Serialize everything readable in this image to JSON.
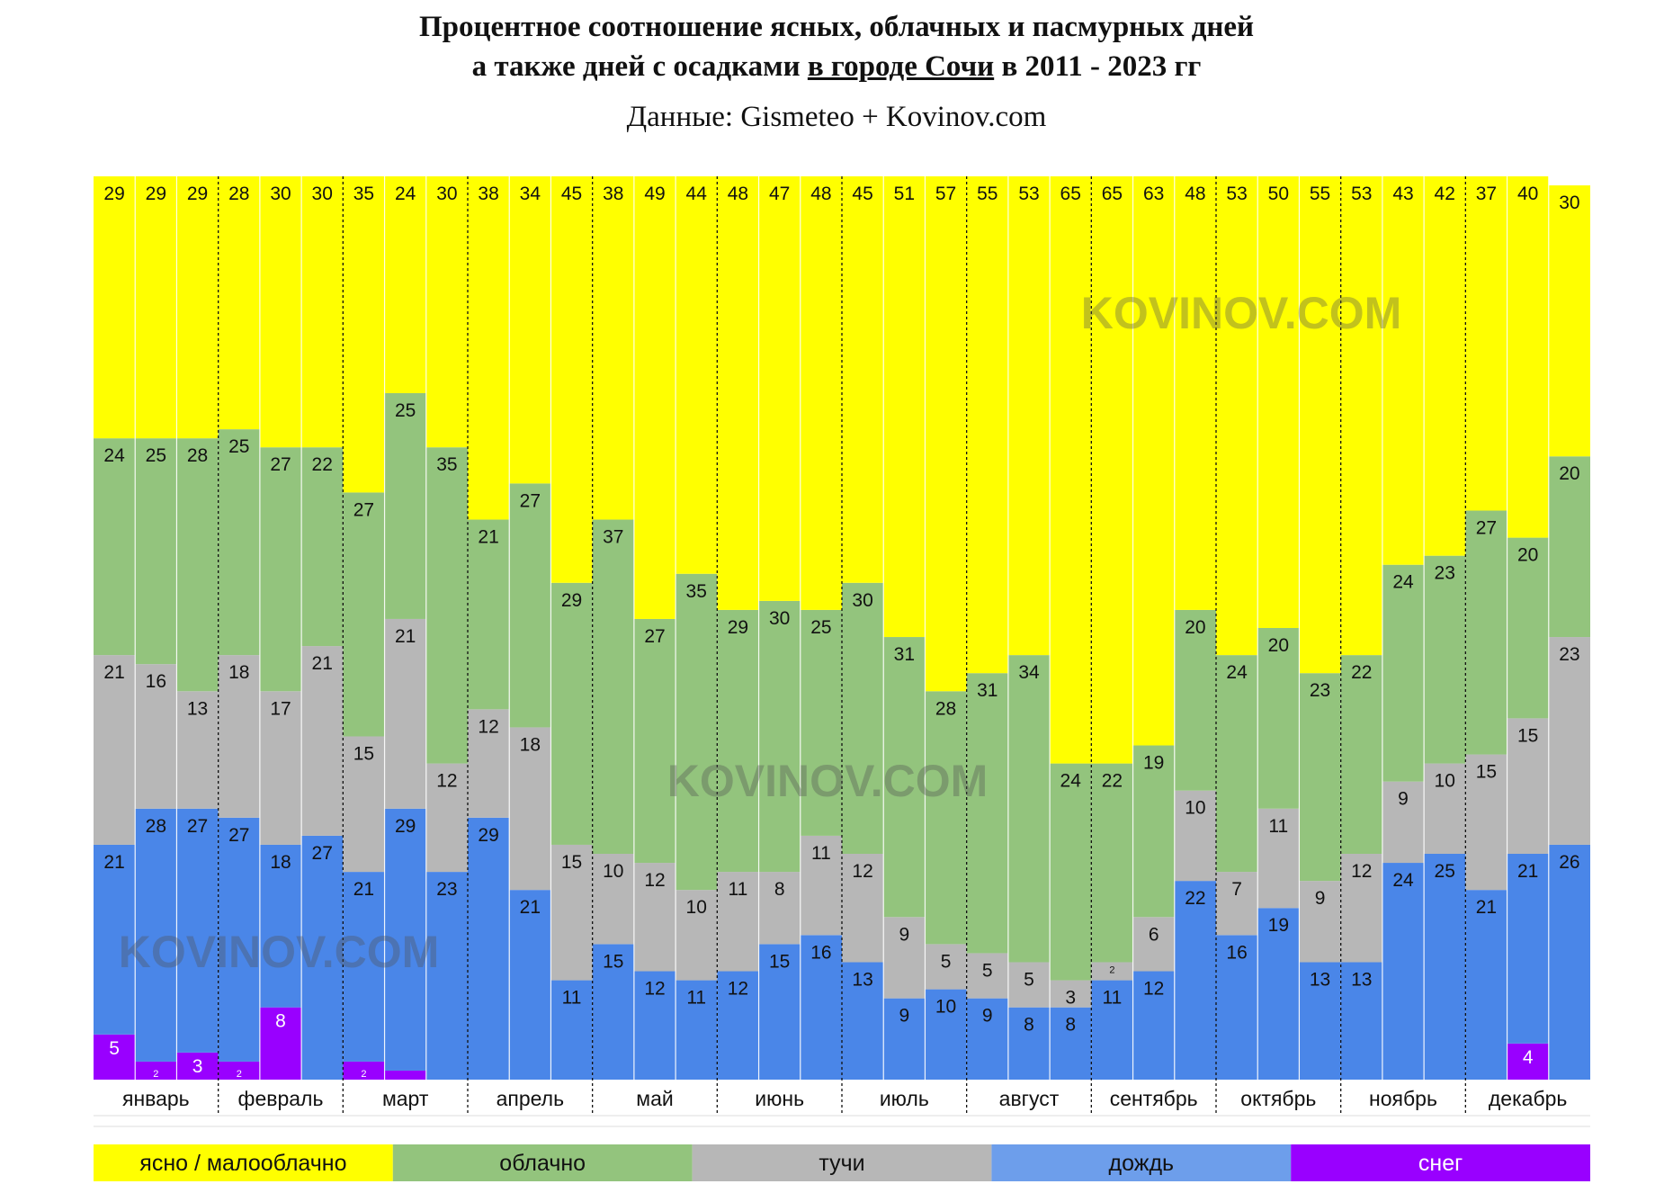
{
  "title": {
    "line1": "Процентное соотношение ясных, облачных и пасмурных дней",
    "line2_before": "а также дней с осадками",
    "line2_city": "в городе Сочи",
    "line2_after": "в 2011 - 2023 гг",
    "source": "Данные: Gismeteo + Kovinov.com"
  },
  "watermark": "KOVINOV.COM",
  "colors": {
    "clear": "#ffff00",
    "cloudy": "#93c47d",
    "overcast": "#b7b7b7",
    "rain": "#4a86e8",
    "snow": "#9900ff"
  },
  "chart_data": {
    "type": "bar",
    "stacked": true,
    "ylim": [
      0,
      100
    ],
    "unit": "%",
    "months": [
      "январь",
      "февраль",
      "март",
      "апрель",
      "май",
      "июнь",
      "июль",
      "август",
      "сентябрь",
      "октябрь",
      "ноябрь",
      "декабрь"
    ],
    "bars_per_month": 3,
    "series": [
      {
        "name": "ясно / малооблачно",
        "key": "clear",
        "values": [
          29,
          29,
          29,
          28,
          30,
          30,
          35,
          24,
          30,
          38,
          34,
          45,
          38,
          49,
          44,
          48,
          47,
          48,
          45,
          51,
          57,
          55,
          53,
          65,
          65,
          63,
          48,
          53,
          50,
          55,
          53,
          43,
          42,
          37,
          40,
          30
        ]
      },
      {
        "name": "облачно",
        "key": "cloudy",
        "values": [
          24,
          25,
          28,
          25,
          27,
          22,
          27,
          25,
          35,
          21,
          27,
          29,
          37,
          27,
          35,
          29,
          30,
          25,
          30,
          31,
          28,
          31,
          34,
          24,
          22,
          19,
          20,
          24,
          20,
          23,
          22,
          24,
          23,
          27,
          20,
          20
        ]
      },
      {
        "name": "тучи",
        "key": "overcast",
        "values": [
          21,
          16,
          13,
          18,
          17,
          21,
          15,
          21,
          12,
          12,
          18,
          15,
          10,
          12,
          10,
          11,
          8,
          11,
          12,
          9,
          5,
          5,
          5,
          3,
          2,
          6,
          10,
          7,
          11,
          9,
          12,
          9,
          10,
          15,
          15,
          23
        ]
      },
      {
        "name": "дождь",
        "key": "rain",
        "values": [
          21,
          28,
          27,
          27,
          18,
          27,
          21,
          29,
          23,
          29,
          21,
          11,
          15,
          12,
          11,
          12,
          15,
          16,
          13,
          9,
          10,
          9,
          8,
          8,
          11,
          12,
          22,
          16,
          19,
          13,
          13,
          24,
          25,
          21,
          21,
          26
        ]
      },
      {
        "name": "снег",
        "key": "snow",
        "values": [
          5,
          2,
          3,
          2,
          8,
          0,
          2,
          1,
          0,
          0,
          0,
          0,
          0,
          0,
          0,
          0,
          0,
          0,
          0,
          0,
          0,
          0,
          0,
          0,
          0,
          0,
          0,
          0,
          0,
          0,
          0,
          0,
          0,
          0,
          4,
          0
        ]
      }
    ]
  },
  "legend": [
    "ясно / малооблачно",
    "облачно",
    "тучи",
    "дождь",
    "снег"
  ]
}
